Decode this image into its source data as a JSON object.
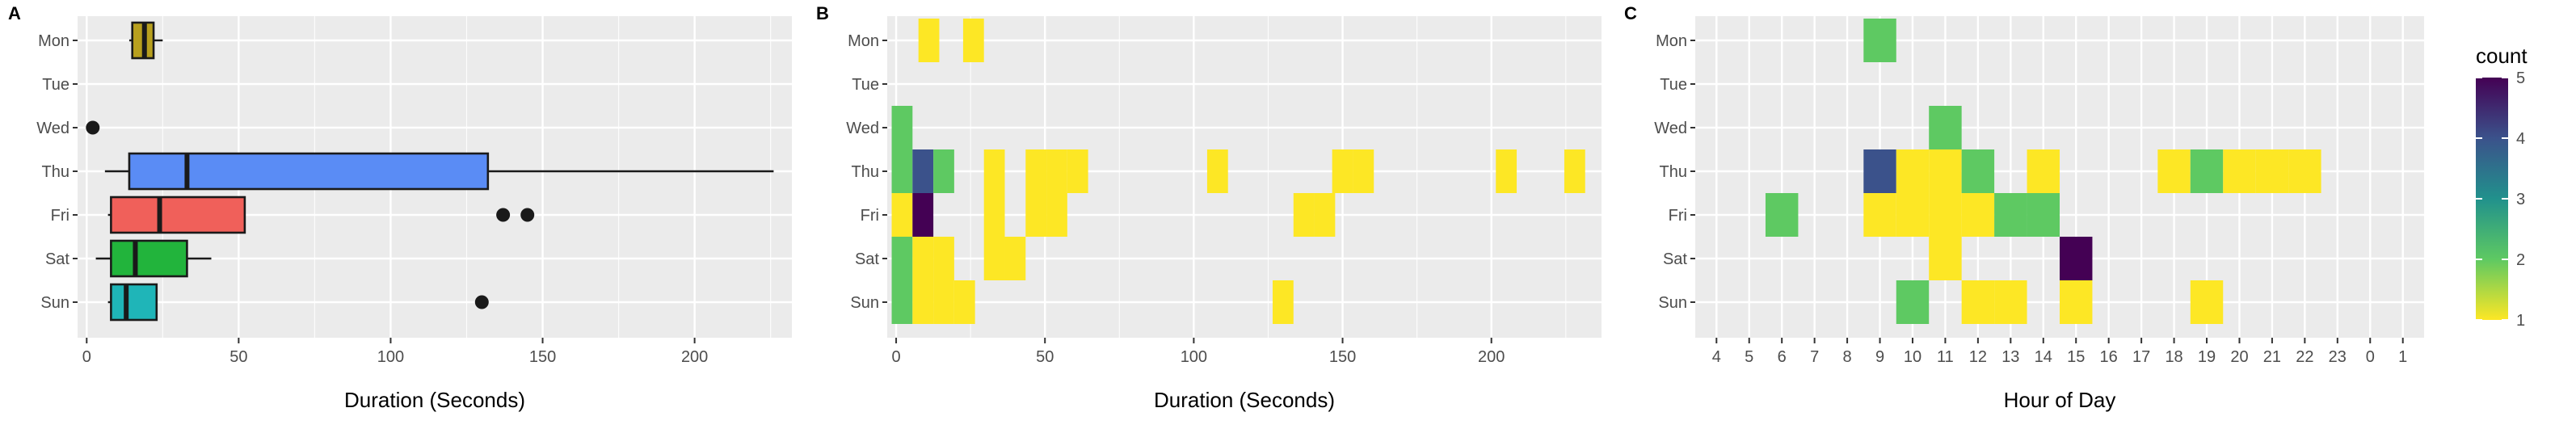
{
  "days": [
    "Mon",
    "Tue",
    "Wed",
    "Thu",
    "Fri",
    "Sat",
    "Sun"
  ],
  "colors": {
    "panel_bg": "#ebebeb",
    "grid_major": "#ffffff",
    "box_outline": "#1a1a1a",
    "Mon": "#b8a01e",
    "Thu": "#5a8cf5",
    "Fri": "#f0605a",
    "Sat": "#22b43c",
    "Sun": "#1fb5b8"
  },
  "chart_data": [
    {
      "panel": "A",
      "type": "boxplot",
      "title": "",
      "xlabel": "Duration (Seconds)",
      "ylabel": "",
      "xlim": [
        -3,
        232
      ],
      "xticks": [
        0,
        50,
        100,
        150,
        200
      ],
      "categories": [
        "Mon",
        "Tue",
        "Wed",
        "Thu",
        "Fri",
        "Sat",
        "Sun"
      ],
      "boxes": [
        {
          "day": "Mon",
          "min": 14,
          "q1": 15,
          "median": 19,
          "q3": 22,
          "max": 25,
          "outliers": []
        },
        {
          "day": "Wed",
          "min": 2,
          "q1": 2,
          "median": 2,
          "q3": 2,
          "max": 2,
          "outliers": [
            2
          ]
        },
        {
          "day": "Thu",
          "min": 6,
          "q1": 14,
          "median": 33,
          "q3": 132,
          "max": 226,
          "outliers": []
        },
        {
          "day": "Fri",
          "min": 7,
          "q1": 8,
          "median": 24,
          "q3": 52,
          "max": 52,
          "outliers": [
            137,
            145
          ]
        },
        {
          "day": "Sat",
          "min": 3,
          "q1": 8,
          "median": 16,
          "q3": 33,
          "max": 41,
          "outliers": []
        },
        {
          "day": "Sun",
          "min": 7,
          "q1": 8,
          "median": 13,
          "q3": 23,
          "max": 23,
          "outliers": [
            130
          ]
        }
      ]
    },
    {
      "panel": "B",
      "type": "heatmap",
      "title": "",
      "xlabel": "Duration (Seconds)",
      "ylabel": "",
      "xlim": [
        -3,
        237
      ],
      "xticks": [
        0,
        50,
        100,
        150,
        200
      ],
      "bin_width": 7,
      "categories": [
        "Mon",
        "Tue",
        "Wed",
        "Thu",
        "Fri",
        "Sat",
        "Sun"
      ],
      "cells": [
        {
          "day": "Mon",
          "x": 11,
          "count": 1
        },
        {
          "day": "Mon",
          "x": 26,
          "count": 1
        },
        {
          "day": "Wed",
          "x": 2,
          "count": 2
        },
        {
          "day": "Thu",
          "x": 2,
          "count": 2
        },
        {
          "day": "Thu",
          "x": 9,
          "count": 4
        },
        {
          "day": "Thu",
          "x": 16,
          "count": 2
        },
        {
          "day": "Thu",
          "x": 33,
          "count": 1
        },
        {
          "day": "Thu",
          "x": 47,
          "count": 1
        },
        {
          "day": "Thu",
          "x": 54,
          "count": 1
        },
        {
          "day": "Thu",
          "x": 61,
          "count": 1
        },
        {
          "day": "Thu",
          "x": 108,
          "count": 1
        },
        {
          "day": "Thu",
          "x": 150,
          "count": 1
        },
        {
          "day": "Thu",
          "x": 157,
          "count": 1
        },
        {
          "day": "Thu",
          "x": 205,
          "count": 1
        },
        {
          "day": "Thu",
          "x": 228,
          "count": 1
        },
        {
          "day": "Fri",
          "x": 2,
          "count": 1
        },
        {
          "day": "Fri",
          "x": 9,
          "count": 5
        },
        {
          "day": "Fri",
          "x": 33,
          "count": 1
        },
        {
          "day": "Fri",
          "x": 47,
          "count": 1
        },
        {
          "day": "Fri",
          "x": 54,
          "count": 1
        },
        {
          "day": "Fri",
          "x": 137,
          "count": 1
        },
        {
          "day": "Fri",
          "x": 144,
          "count": 1
        },
        {
          "day": "Sat",
          "x": 2,
          "count": 2
        },
        {
          "day": "Sat",
          "x": 9,
          "count": 1
        },
        {
          "day": "Sat",
          "x": 16,
          "count": 1
        },
        {
          "day": "Sat",
          "x": 33,
          "count": 1
        },
        {
          "day": "Sat",
          "x": 40,
          "count": 1
        },
        {
          "day": "Sun",
          "x": 2,
          "count": 2
        },
        {
          "day": "Sun",
          "x": 9,
          "count": 1
        },
        {
          "day": "Sun",
          "x": 16,
          "count": 1
        },
        {
          "day": "Sun",
          "x": 23,
          "count": 1
        },
        {
          "day": "Sun",
          "x": 130,
          "count": 1
        }
      ]
    },
    {
      "panel": "C",
      "type": "heatmap",
      "title": "",
      "xlabel": "Hour of Day",
      "ylabel": "",
      "x_categories": [
        "4",
        "5",
        "6",
        "7",
        "8",
        "9",
        "10",
        "11",
        "12",
        "13",
        "14",
        "15",
        "16",
        "17",
        "18",
        "19",
        "20",
        "21",
        "22",
        "23",
        "0",
        "1"
      ],
      "categories": [
        "Mon",
        "Tue",
        "Wed",
        "Thu",
        "Fri",
        "Sat",
        "Sun"
      ],
      "cells": [
        {
          "day": "Mon",
          "hour": "9",
          "count": 2
        },
        {
          "day": "Wed",
          "hour": "11",
          "count": 2
        },
        {
          "day": "Thu",
          "hour": "9",
          "count": 4
        },
        {
          "day": "Thu",
          "hour": "10",
          "count": 1
        },
        {
          "day": "Thu",
          "hour": "11",
          "count": 1
        },
        {
          "day": "Thu",
          "hour": "12",
          "count": 2
        },
        {
          "day": "Thu",
          "hour": "14",
          "count": 1
        },
        {
          "day": "Thu",
          "hour": "18",
          "count": 1
        },
        {
          "day": "Thu",
          "hour": "19",
          "count": 2
        },
        {
          "day": "Thu",
          "hour": "20",
          "count": 1
        },
        {
          "day": "Thu",
          "hour": "21",
          "count": 1
        },
        {
          "day": "Thu",
          "hour": "22",
          "count": 1
        },
        {
          "day": "Fri",
          "hour": "6",
          "count": 2
        },
        {
          "day": "Fri",
          "hour": "9",
          "count": 1
        },
        {
          "day": "Fri",
          "hour": "10",
          "count": 1
        },
        {
          "day": "Fri",
          "hour": "11",
          "count": 1
        },
        {
          "day": "Fri",
          "hour": "12",
          "count": 1
        },
        {
          "day": "Fri",
          "hour": "13",
          "count": 2
        },
        {
          "day": "Fri",
          "hour": "14",
          "count": 2
        },
        {
          "day": "Sat",
          "hour": "11",
          "count": 1
        },
        {
          "day": "Sat",
          "hour": "15",
          "count": 5
        },
        {
          "day": "Sun",
          "hour": "10",
          "count": 2
        },
        {
          "day": "Sun",
          "hour": "12",
          "count": 1
        },
        {
          "day": "Sun",
          "hour": "13",
          "count": 1
        },
        {
          "day": "Sun",
          "hour": "15",
          "count": 1
        },
        {
          "day": "Sun",
          "hour": "19",
          "count": 1
        }
      ]
    }
  ],
  "legend": {
    "title": "count",
    "ticks": [
      1,
      2,
      3,
      4,
      5
    ],
    "range": [
      1,
      5
    ],
    "palette": [
      "#fde725",
      "#5ec962",
      "#21918c",
      "#3b528b",
      "#440154"
    ]
  },
  "panel_labels": [
    "A",
    "B",
    "C"
  ]
}
